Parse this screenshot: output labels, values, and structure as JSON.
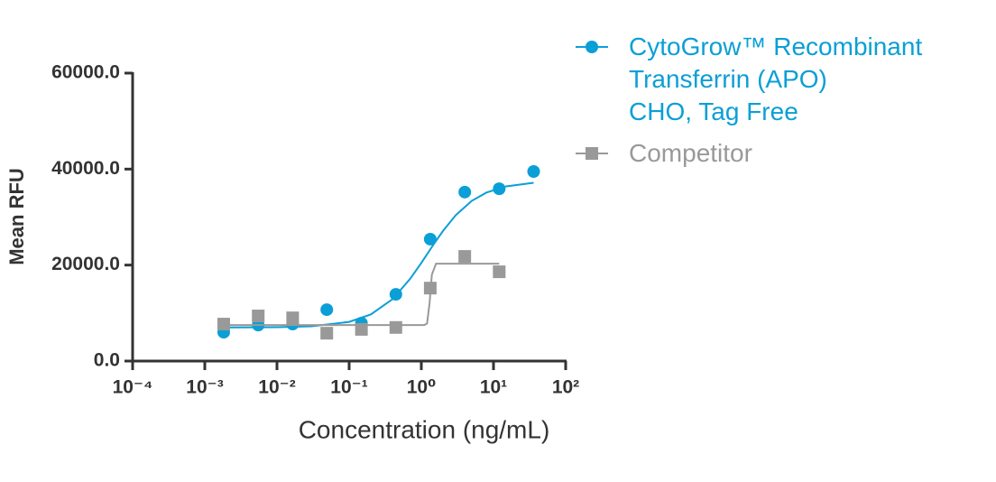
{
  "chart_data": {
    "type": "scatter",
    "xlabel": "Concentration (ng/mL)",
    "ylabel": "Mean RFU",
    "xlog": true,
    "xlim": [
      0.0001,
      100
    ],
    "xticks": [
      {
        "value": 0.0001,
        "label": "10⁻⁴"
      },
      {
        "value": 0.001,
        "label": "10⁻³"
      },
      {
        "value": 0.01,
        "label": "10⁻²"
      },
      {
        "value": 0.1,
        "label": "10⁻¹"
      },
      {
        "value": 1,
        "label": "10⁰"
      },
      {
        "value": 10,
        "label": "10¹"
      },
      {
        "value": 100,
        "label": "10²"
      }
    ],
    "ylim": [
      0,
      60000
    ],
    "yticks": [
      {
        "value": 0,
        "label": "0.0"
      },
      {
        "value": 20000,
        "label": "20000.0"
      },
      {
        "value": 40000,
        "label": "40000.0"
      },
      {
        "value": 60000,
        "label": "60000.0"
      }
    ],
    "legend": "top-right",
    "series": [
      {
        "name": "CytoGrow™ Recombinant\nTransferrin (APO)\nCHO, Tag Free",
        "color": "#0a9fd6",
        "marker": "circle",
        "x": [
          0.00183,
          0.0055,
          0.0165,
          0.049,
          0.148,
          0.444,
          1.33,
          4,
          12,
          36
        ],
        "values": [
          6000,
          7500,
          7700,
          10700,
          7900,
          13900,
          25400,
          35200,
          35900,
          39500
        ],
        "fit": {
          "x": [
            0.0018,
            0.01,
            0.03,
            0.1,
            0.2,
            0.4,
            0.7,
            1,
            1.5,
            2,
            3,
            5,
            8,
            15,
            36
          ],
          "values": [
            7000,
            7060,
            7250,
            8160,
            9710,
            12900,
            17130,
            20450,
            24450,
            27130,
            30390,
            33380,
            35110,
            36400,
            37140
          ]
        }
      },
      {
        "name": "Competitor",
        "color": "#999999",
        "marker": "square",
        "x": [
          0.00183,
          0.0055,
          0.0165,
          0.049,
          0.148,
          0.444,
          1.33,
          4,
          12
        ],
        "values": [
          7700,
          9400,
          9000,
          5800,
          6600,
          7000,
          15200,
          21800,
          18600
        ],
        "fit": {
          "x": [
            0.0018,
            1.1,
            1.2,
            1.3,
            1.4,
            1.6,
            12
          ],
          "values": [
            7500,
            7500,
            7800,
            12000,
            18000,
            20300,
            20300
          ]
        }
      }
    ]
  }
}
